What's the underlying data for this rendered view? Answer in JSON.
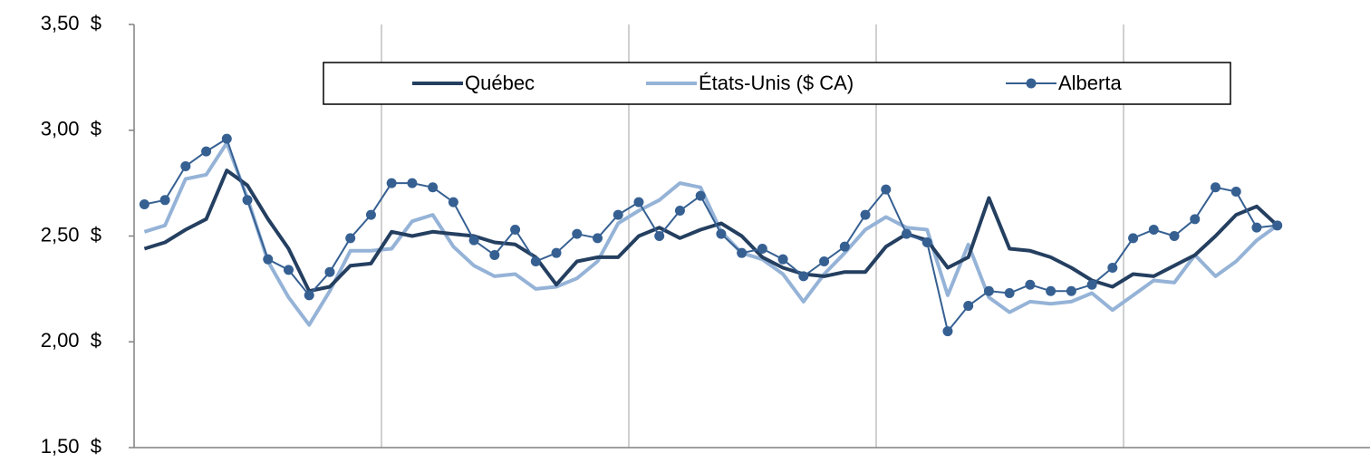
{
  "chart_data": {
    "type": "line",
    "categories": [
      null,
      null,
      null,
      null,
      null,
      null,
      null,
      null,
      null,
      null,
      null,
      null,
      null,
      null,
      null,
      null,
      null,
      null,
      null,
      null,
      null,
      null,
      null,
      null,
      null,
      null,
      null,
      null,
      null,
      null,
      null,
      null,
      null,
      null,
      null,
      null,
      null,
      null,
      null,
      null,
      null,
      null,
      null,
      null,
      null,
      null,
      null,
      null,
      null,
      null,
      null,
      null,
      null,
      null,
      null,
      null,
      null,
      null,
      null,
      null
    ],
    "series": [
      {
        "name": "Québec",
        "color": "#243f60",
        "marker": false,
        "values": [
          2.44,
          2.47,
          2.53,
          2.58,
          2.81,
          2.74,
          2.58,
          2.44,
          2.24,
          2.26,
          2.36,
          2.37,
          2.52,
          2.5,
          2.52,
          2.51,
          2.5,
          2.47,
          2.46,
          2.4,
          2.27,
          2.38,
          2.4,
          2.4,
          2.5,
          2.54,
          2.49,
          2.53,
          2.56,
          2.5,
          2.4,
          2.35,
          2.32,
          2.31,
          2.33,
          2.33,
          2.45,
          2.51,
          2.48,
          2.35,
          2.4,
          2.68,
          2.44,
          2.43,
          2.4,
          2.35,
          2.29,
          2.26,
          2.32,
          2.31,
          2.36,
          2.41,
          2.5,
          2.6,
          2.64,
          2.55,
          null,
          null,
          null,
          null
        ]
      },
      {
        "name": "États-Unis ($ CA)",
        "color": "#95b3d7",
        "marker": false,
        "values": [
          2.52,
          2.55,
          2.77,
          2.79,
          2.94,
          2.68,
          2.38,
          2.21,
          2.08,
          2.24,
          2.43,
          2.43,
          2.44,
          2.57,
          2.6,
          2.45,
          2.36,
          2.31,
          2.32,
          2.25,
          2.26,
          2.3,
          2.38,
          2.56,
          2.62,
          2.67,
          2.75,
          2.73,
          2.52,
          2.42,
          2.39,
          2.32,
          2.19,
          2.32,
          2.42,
          2.53,
          2.59,
          2.54,
          2.53,
          2.22,
          2.46,
          2.21,
          2.14,
          2.19,
          2.18,
          2.19,
          2.23,
          2.15,
          2.22,
          2.29,
          2.28,
          2.41,
          2.31,
          2.38,
          2.48,
          2.55,
          null,
          null,
          null,
          null
        ]
      },
      {
        "name": "Alberta",
        "color": "#366092",
        "marker": true,
        "values": [
          2.65,
          2.67,
          2.83,
          2.9,
          2.96,
          2.67,
          2.39,
          2.34,
          2.22,
          2.33,
          2.49,
          2.6,
          2.75,
          2.75,
          2.73,
          2.66,
          2.48,
          2.41,
          2.53,
          2.38,
          2.42,
          2.51,
          2.49,
          2.6,
          2.66,
          2.5,
          2.62,
          2.69,
          2.51,
          2.42,
          2.44,
          2.39,
          2.31,
          2.38,
          2.45,
          2.6,
          2.72,
          2.51,
          2.47,
          2.05,
          2.17,
          2.24,
          2.23,
          2.27,
          2.24,
          2.24,
          2.27,
          2.35,
          2.49,
          2.53,
          2.5,
          2.58,
          2.73,
          2.71,
          2.54,
          2.55,
          null,
          null,
          null,
          null
        ]
      }
    ],
    "ylim": [
      1.5,
      3.5
    ],
    "yticks": [
      {
        "value": 1.5,
        "label": "1,50  $"
      },
      {
        "value": 2,
        "label": "2,00  $"
      },
      {
        "value": 2.5,
        "label": "2,50  $"
      },
      {
        "value": 3,
        "label": "3,00  $"
      },
      {
        "value": 3.5,
        "label": "3,50  $"
      }
    ],
    "legend": "top"
  }
}
